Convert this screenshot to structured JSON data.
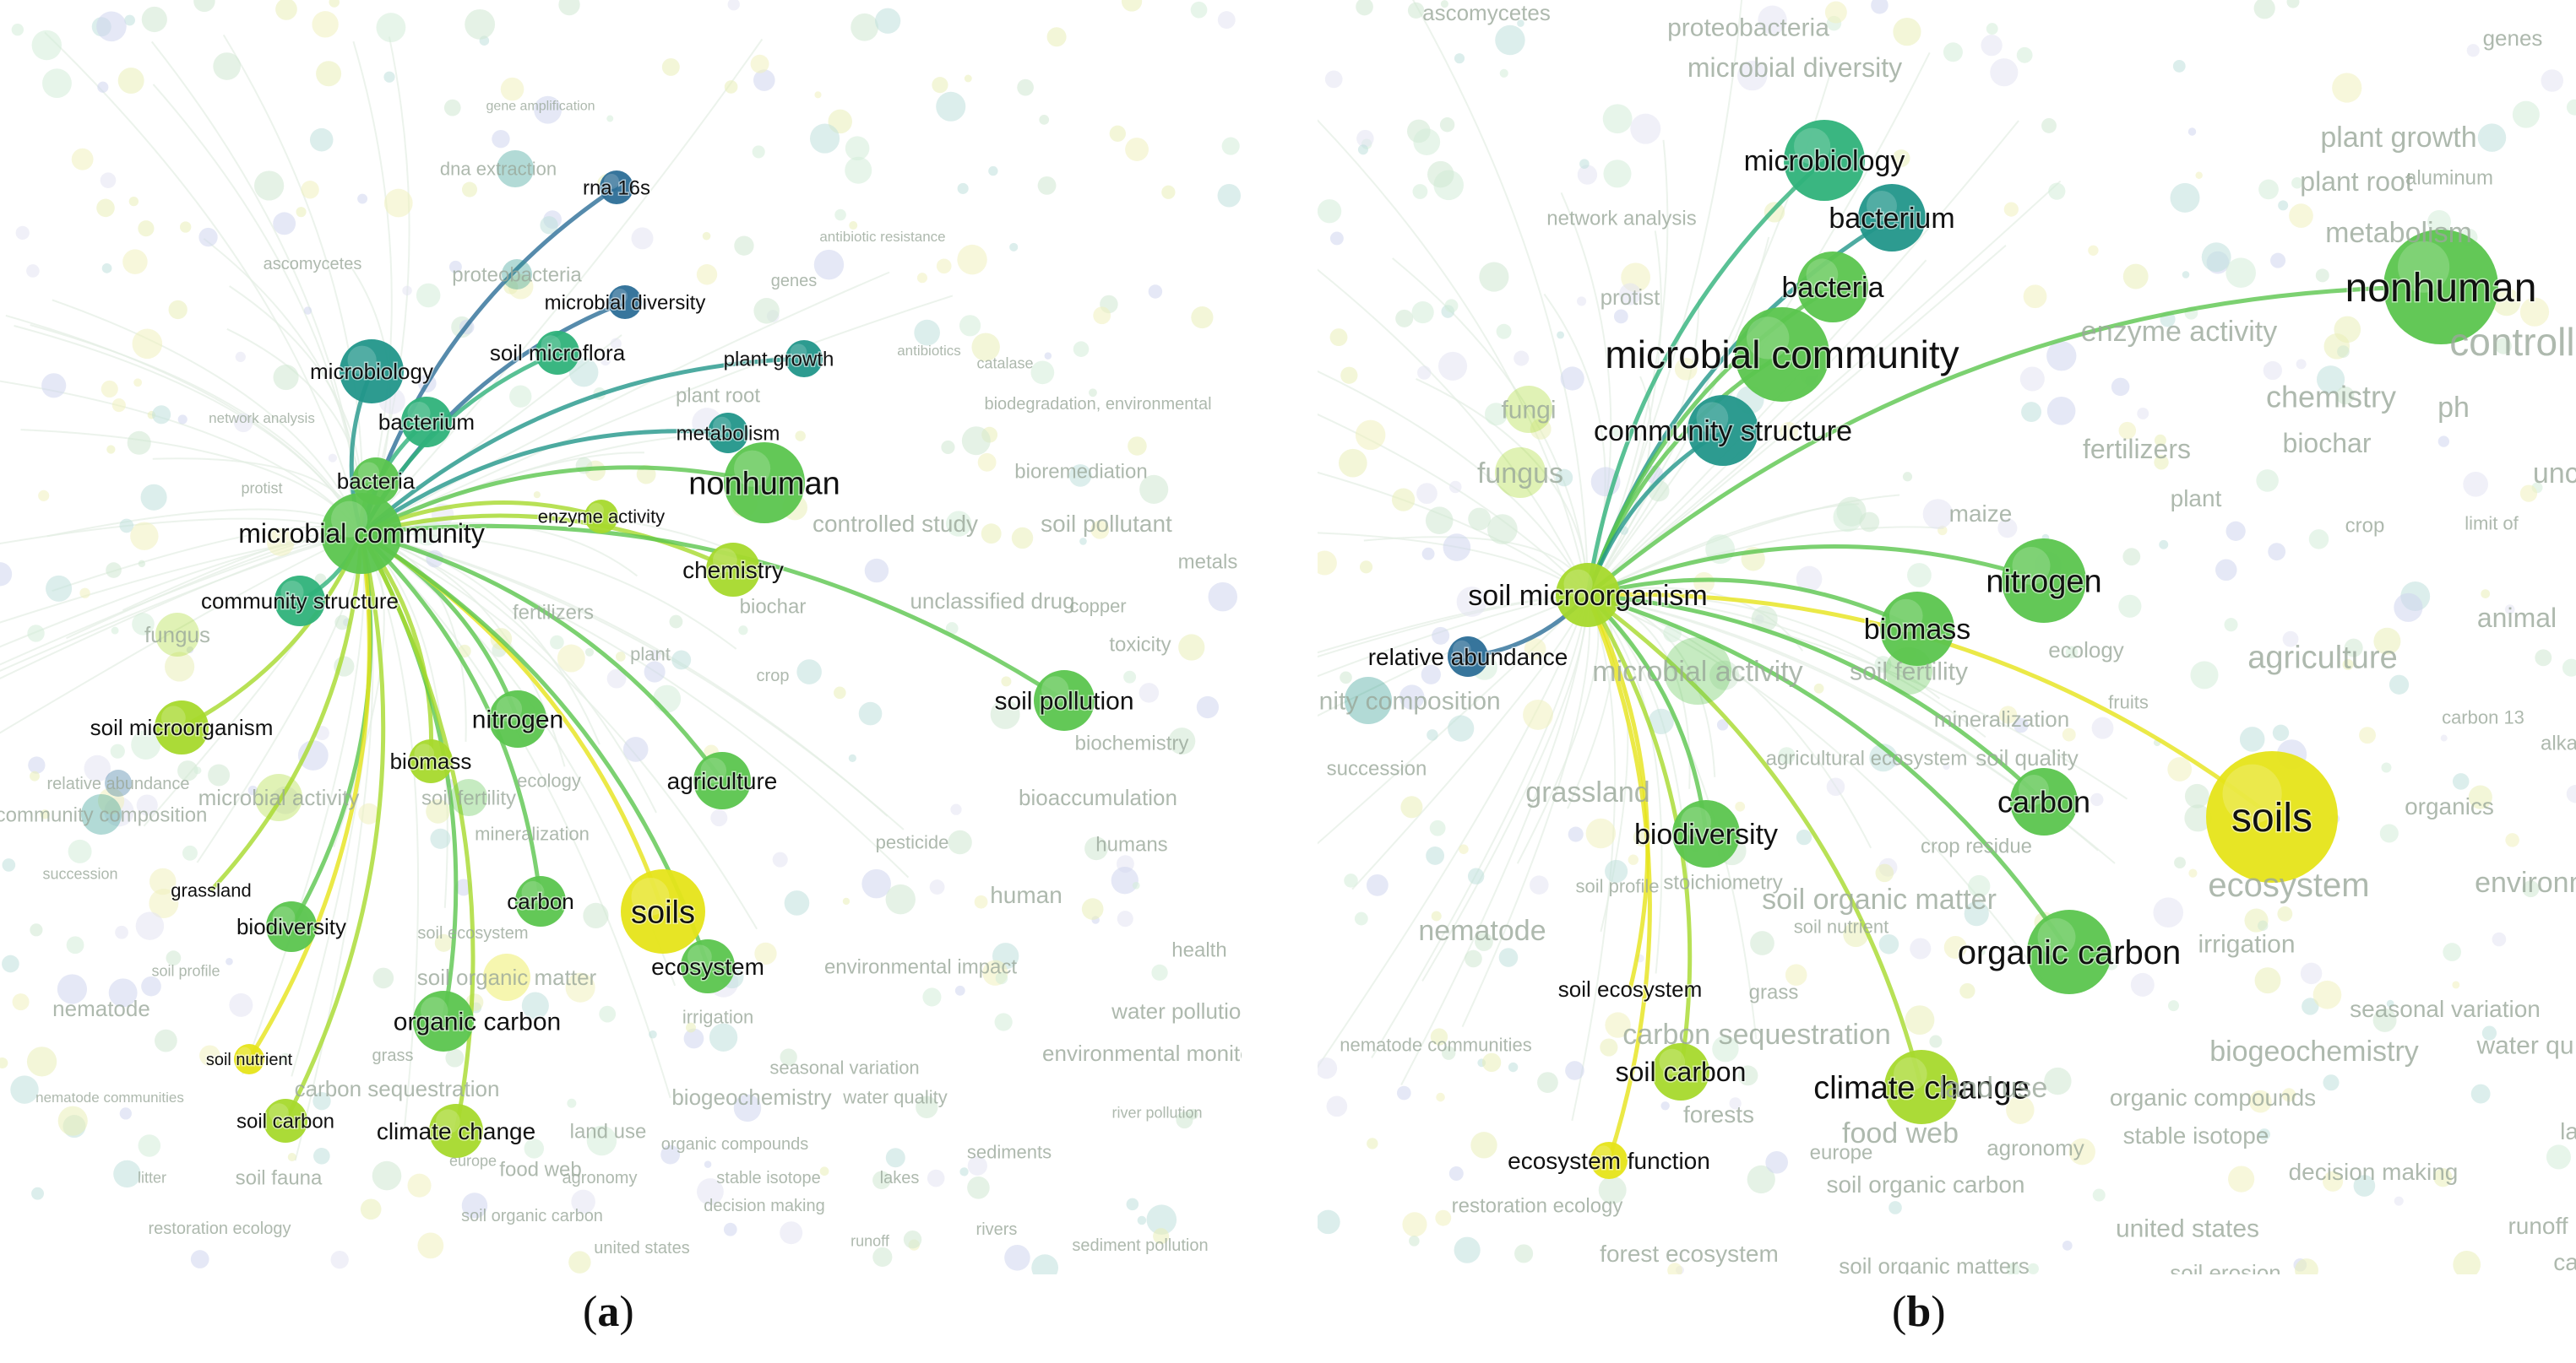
{
  "captions": {
    "a": "a",
    "b": "b"
  },
  "colors": {
    "yellow": "#e6e419",
    "yellowgreen": "#a6d92c",
    "green": "#5bc54e",
    "teal_green": "#2fb27a",
    "teal": "#22968a",
    "blue": "#2c6e97",
    "purple": "#5b4ba6",
    "faint": "#d8e6d8"
  },
  "panel_a": {
    "nodes": [
      {
        "label": "gene amplification"
      },
      {
        "label": "dna extraction"
      },
      {
        "label": "rna 16s"
      },
      {
        "label": "ascomycetes"
      },
      {
        "label": "proteobacteria"
      },
      {
        "label": "microbial diversity"
      },
      {
        "label": "genes"
      },
      {
        "label": "antibiotic resistance"
      },
      {
        "label": "soil microflora"
      },
      {
        "label": "plant growth"
      },
      {
        "label": "microbiology"
      },
      {
        "label": "bacterium"
      },
      {
        "label": "network analysis"
      },
      {
        "label": "bacteria"
      },
      {
        "label": "metabolism"
      },
      {
        "label": "nonhuman"
      },
      {
        "label": "microbial community"
      },
      {
        "label": "enzyme activity"
      },
      {
        "label": "controlled study"
      },
      {
        "label": "chemistry"
      },
      {
        "label": "community structure"
      },
      {
        "label": "fungus"
      },
      {
        "label": "soil pollution"
      },
      {
        "label": "soil microorganism"
      },
      {
        "label": "nitrogen"
      },
      {
        "label": "agriculture"
      },
      {
        "label": "biomass"
      },
      {
        "label": "microbial activity"
      },
      {
        "label": "soil fertility"
      },
      {
        "label": "community composition"
      },
      {
        "label": "relative abundance"
      },
      {
        "label": "grassland"
      },
      {
        "label": "soils"
      },
      {
        "label": "carbon"
      },
      {
        "label": "biodiversity"
      },
      {
        "label": "ecosystem"
      },
      {
        "label": "soil organic matter"
      },
      {
        "label": "organic carbon"
      },
      {
        "label": "soil nutrient"
      },
      {
        "label": "soil carbon"
      },
      {
        "label": "climate change"
      },
      {
        "label": "biogeochemistry"
      },
      {
        "label": "water quality"
      },
      {
        "label": "soil fauna"
      },
      {
        "label": "restoration ecology"
      },
      {
        "label": "soil pollutant"
      },
      {
        "label": "bioremediation"
      },
      {
        "label": "biodegradation, environmental"
      },
      {
        "label": "biochar"
      },
      {
        "label": "fertilizers"
      },
      {
        "label": "unclassified drug"
      },
      {
        "label": "toxicity"
      },
      {
        "label": "copper"
      },
      {
        "label": "metals"
      },
      {
        "label": "biochemistry"
      },
      {
        "label": "bioaccumulation"
      },
      {
        "label": "humans"
      },
      {
        "label": "human"
      },
      {
        "label": "pesticide"
      },
      {
        "label": "environmental impact"
      },
      {
        "label": "water pollution"
      },
      {
        "label": "environmental monitoring"
      },
      {
        "label": "health"
      },
      {
        "label": "sediments"
      },
      {
        "label": "lakes"
      },
      {
        "label": "rivers"
      },
      {
        "label": "united states"
      },
      {
        "label": "sediment pollution"
      },
      {
        "label": "decision making"
      },
      {
        "label": "agronomy"
      },
      {
        "label": "stable isotope"
      },
      {
        "label": "organic compounds"
      },
      {
        "label": "food web"
      },
      {
        "label": "land use"
      },
      {
        "label": "soil organic carbon"
      },
      {
        "label": "nematode"
      },
      {
        "label": "soil profile"
      },
      {
        "label": "succession"
      },
      {
        "label": "litter"
      },
      {
        "label": "runoff"
      },
      {
        "label": "river pollution"
      },
      {
        "label": "catalase"
      },
      {
        "label": "antibiotics"
      },
      {
        "label": "crop"
      },
      {
        "label": "plant root"
      },
      {
        "label": "plant"
      },
      {
        "label": "carbon sequestration"
      },
      {
        "label": "irrigation"
      },
      {
        "label": "seasonal variation"
      },
      {
        "label": "mineralization"
      },
      {
        "label": "ecology"
      },
      {
        "label": "grass"
      },
      {
        "label": "protist"
      },
      {
        "label": "europe"
      },
      {
        "label": "soil ecosystem"
      },
      {
        "label": "nematode communities"
      }
    ]
  },
  "panel_b": {
    "nodes": [
      {
        "label": "ascomycetes"
      },
      {
        "label": "proteobacteria"
      },
      {
        "label": "microbial diversity"
      },
      {
        "label": "genes"
      },
      {
        "label": "plant growth"
      },
      {
        "label": "microbiology"
      },
      {
        "label": "aluminum"
      },
      {
        "label": "bacterium"
      },
      {
        "label": "plant root"
      },
      {
        "label": "network analysis"
      },
      {
        "label": "metabolism"
      },
      {
        "label": "protist"
      },
      {
        "label": "bacteria"
      },
      {
        "label": "nonhuman"
      },
      {
        "label": "enzyme activity"
      },
      {
        "label": "controlled"
      },
      {
        "label": "microbial community"
      },
      {
        "label": "chemistry"
      },
      {
        "label": "ph"
      },
      {
        "label": "fungi"
      },
      {
        "label": "community structure"
      },
      {
        "label": "fertilizers"
      },
      {
        "label": "biochar"
      },
      {
        "label": "fungus"
      },
      {
        "label": "plant"
      },
      {
        "label": "uncl"
      },
      {
        "label": "maize"
      },
      {
        "label": "crop"
      },
      {
        "label": "limit of"
      },
      {
        "label": "nitrogen"
      },
      {
        "label": "soil microorganism"
      },
      {
        "label": "animal"
      },
      {
        "label": "biomass"
      },
      {
        "label": "ecology"
      },
      {
        "label": "agriculture"
      },
      {
        "label": "relative abundance"
      },
      {
        "label": "microbial activity"
      },
      {
        "label": "soil fertility"
      },
      {
        "label": "community composition"
      },
      {
        "label": "mineralization"
      },
      {
        "label": "fruits"
      },
      {
        "label": "carbon 13"
      },
      {
        "label": "agricultural ecosystem"
      },
      {
        "label": "soil quality"
      },
      {
        "label": "alka"
      },
      {
        "label": "succession"
      },
      {
        "label": "grassland"
      },
      {
        "label": "carbon"
      },
      {
        "label": "soils"
      },
      {
        "label": "organics"
      },
      {
        "label": "biodiversity"
      },
      {
        "label": "crop residue"
      },
      {
        "label": "soil profile"
      },
      {
        "label": "stoichiometry"
      },
      {
        "label": "soil organic matter"
      },
      {
        "label": "ecosystem"
      },
      {
        "label": "environm"
      },
      {
        "label": "nematode"
      },
      {
        "label": "organic carbon"
      },
      {
        "label": "irrigation"
      },
      {
        "label": "soil ecosystem"
      },
      {
        "label": "grass"
      },
      {
        "label": "seasonal variation"
      },
      {
        "label": "nematode communities"
      },
      {
        "label": "carbon sequestration"
      },
      {
        "label": "biogeochemistry"
      },
      {
        "label": "water qu"
      },
      {
        "label": "soil carbon"
      },
      {
        "label": "climate change"
      },
      {
        "label": "land use"
      },
      {
        "label": "organic compounds"
      },
      {
        "label": "food web"
      },
      {
        "label": "agronomy"
      },
      {
        "label": "stable isotope"
      },
      {
        "label": "forests"
      },
      {
        "label": "europe"
      },
      {
        "label": "ecosystem function"
      },
      {
        "label": "soil organic carbon"
      },
      {
        "label": "decision making"
      },
      {
        "label": "restoration ecology"
      },
      {
        "label": "united states"
      },
      {
        "label": "runoff"
      },
      {
        "label": "forest ecosystem"
      },
      {
        "label": "soil organic matters"
      },
      {
        "label": "soil erosion"
      },
      {
        "label": "soil nutrient"
      },
      {
        "label": "ca"
      },
      {
        "label": "la"
      }
    ]
  }
}
